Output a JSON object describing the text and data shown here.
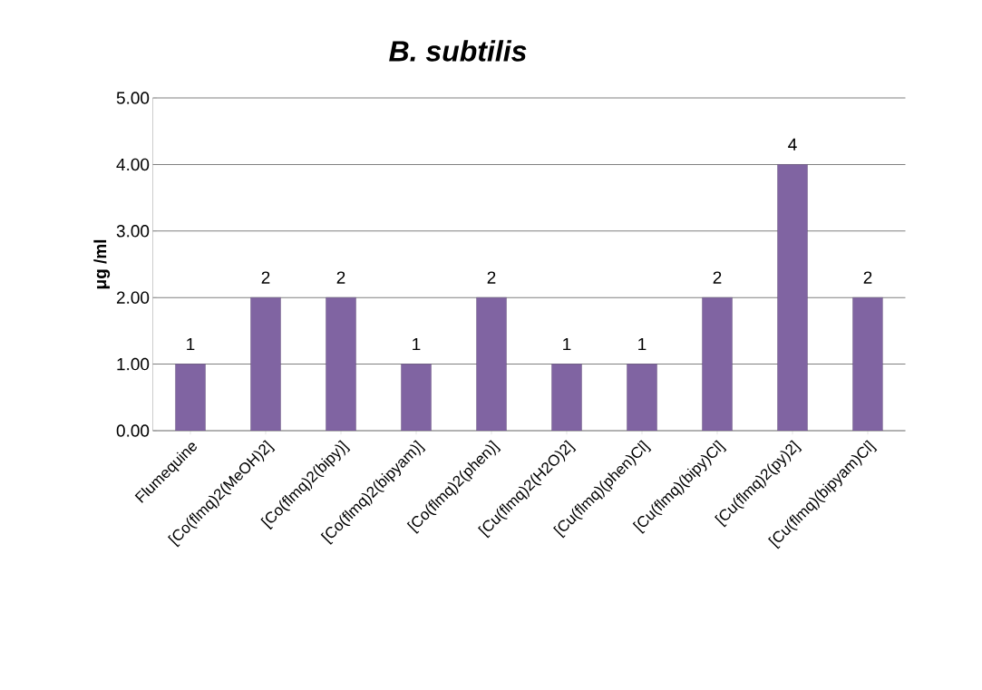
{
  "chart_data": {
    "type": "bar",
    "title": "*B. subtilis*",
    "ylabel": "**μg /ml**",
    "categories": [
      "Flumequine",
      "[Co(flmq)2(MeOH)2]",
      "[Co(flmq)2(bipy)]",
      "[Co(flmq)2(bipyam)]",
      "[Co(flmq)2(phen)]",
      "[Cu(flmq)2(H2O)2]",
      "[Cu(flmq)(phen)Cl]",
      "[Cu(flmq)(bipy)Cl]",
      "[Cu(flmq)2(py)2]",
      "[Cu(flmq)(bipyam)Cl]"
    ],
    "values": [
      1,
      2,
      2,
      1,
      2,
      1,
      1,
      2,
      4,
      2
    ],
    "color": "#8064a2",
    "ylim": [
      0,
      5
    ],
    "yticks": [
      {
        "value": 0,
        "label": "0.00"
      },
      {
        "value": 1,
        "label": "1.00"
      },
      {
        "value": 2,
        "label": "2.00"
      },
      {
        "value": 3,
        "label": "3.00"
      },
      {
        "value": 4,
        "label": "4.00"
      },
      {
        "value": 5,
        "label": "5.00"
      }
    ],
    "grid": "y",
    "data_labels": true
  }
}
